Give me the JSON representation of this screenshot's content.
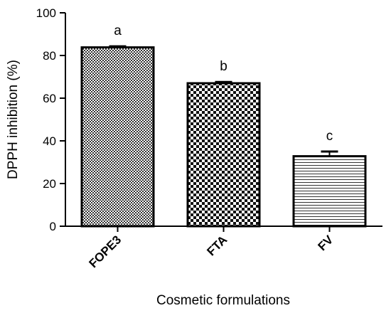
{
  "chart_data": {
    "type": "bar",
    "categories": [
      "FOPE3",
      "FTA",
      "FV"
    ],
    "values": [
      83.8,
      67.0,
      32.8
    ],
    "errors": [
      0.5,
      0.6,
      2.2
    ],
    "significance_letters": [
      "a",
      "b",
      "c"
    ],
    "xlabel": "Cosmetic formulations",
    "ylabel": "DPPH inhibition (%)",
    "ylim": [
      0,
      100
    ],
    "yticks": [
      "0",
      "20",
      "40",
      "60",
      "80",
      "100"
    ],
    "patterns": [
      "fine-checkered",
      "checkered",
      "horizontal-lines"
    ],
    "grid": false,
    "legend": "none"
  }
}
